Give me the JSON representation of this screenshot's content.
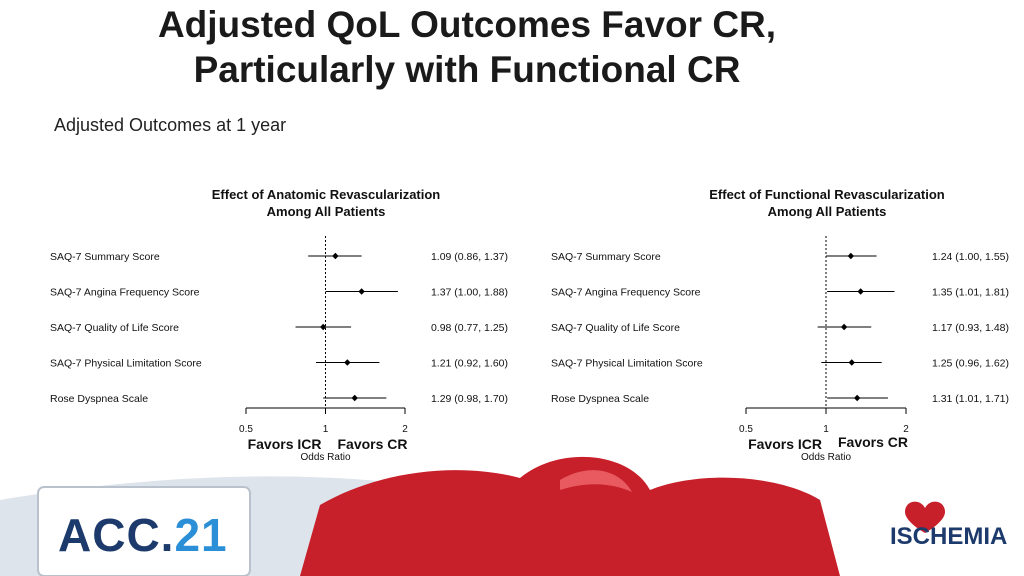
{
  "slide": {
    "title_line1": "Adjusted QoL Outcomes Favor CR,",
    "title_line2": "Particularly with Functional CR",
    "subtitle": "Adjusted Outcomes at 1 year"
  },
  "footer": {
    "acc_logo_text": "ACC.",
    "acc_logo_number": "21",
    "ischemia_logo_text": "ISCHEMIA"
  },
  "colors": {
    "marker": "#000000",
    "axis": "#000000",
    "footer_red": "#c8202a",
    "footer_blue": "#1c3a6b",
    "footer_light_blue": "#2a8fd6"
  },
  "chart_data": [
    {
      "type": "forest",
      "title_line1": "Effect of Anatomic Revascularization",
      "title_line2": "Among All Patients",
      "xlabel": "Odds Ratio",
      "xscale": "log",
      "xlim": [
        0.5,
        2
      ],
      "xticks": [
        "0.5",
        "1",
        "2"
      ],
      "reference_line": 1,
      "favors_left": "Favors ICR",
      "favors_right": "Favors CR",
      "rows": [
        {
          "label": "SAQ-7 Summary Score",
          "or": 1.09,
          "lo": 0.86,
          "hi": 1.37,
          "text": "1.09 (0.86, 1.37)"
        },
        {
          "label": "SAQ-7 Angina Frequency Score",
          "or": 1.37,
          "lo": 1.0,
          "hi": 1.88,
          "text": "1.37 (1.00, 1.88)"
        },
        {
          "label": "SAQ-7 Quality of Life Score",
          "or": 0.98,
          "lo": 0.77,
          "hi": 1.25,
          "text": "0.98 (0.77, 1.25)"
        },
        {
          "label": "SAQ-7 Physical Limitation Score",
          "or": 1.21,
          "lo": 0.92,
          "hi": 1.6,
          "text": "1.21 (0.92, 1.60)"
        },
        {
          "label": "Rose Dyspnea Scale",
          "or": 1.29,
          "lo": 0.98,
          "hi": 1.7,
          "text": "1.29 (0.98, 1.70)"
        }
      ]
    },
    {
      "type": "forest",
      "title_line1": "Effect of Functional Revascularization",
      "title_line2": "Among All Patients",
      "xlabel": "Odds Ratio",
      "xscale": "log",
      "xlim": [
        0.5,
        2
      ],
      "xticks": [
        "0.5",
        "1",
        "2"
      ],
      "reference_line": 1,
      "favors_left": "Favors ICR",
      "favors_right": "Favors CR",
      "rows": [
        {
          "label": "SAQ-7 Summary Score",
          "or": 1.24,
          "lo": 1.0,
          "hi": 1.55,
          "text": "1.24 (1.00, 1.55)"
        },
        {
          "label": "SAQ-7 Angina Frequency Score",
          "or": 1.35,
          "lo": 1.01,
          "hi": 1.81,
          "text": "1.35 (1.01, 1.81)"
        },
        {
          "label": "SAQ-7 Quality of Life Score",
          "or": 1.17,
          "lo": 0.93,
          "hi": 1.48,
          "text": "1.17 (0.93, 1.48)"
        },
        {
          "label": "SAQ-7 Physical Limitation Score",
          "or": 1.25,
          "lo": 0.96,
          "hi": 1.62,
          "text": "1.25 (0.96, 1.62)"
        },
        {
          "label": "Rose Dyspnea Scale",
          "or": 1.31,
          "lo": 1.01,
          "hi": 1.71,
          "text": "1.31 (1.01, 1.71)"
        }
      ]
    }
  ]
}
